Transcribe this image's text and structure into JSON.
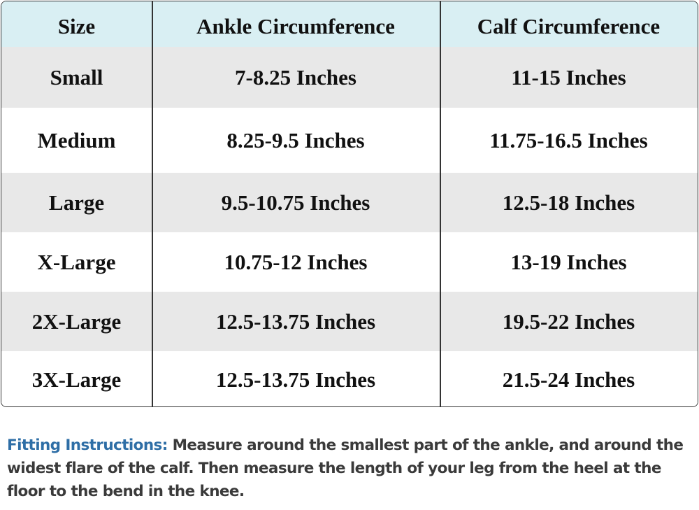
{
  "table": {
    "header": [
      "Size",
      "Ankle Circumference",
      "Calf Circumference"
    ],
    "rows": [
      [
        "Small",
        "7-8.25 Inches",
        "11-15 Inches"
      ],
      [
        "Medium",
        "8.25-9.5 Inches",
        "11.75-16.5 Inches"
      ],
      [
        "Large",
        "9.5-10.75 Inches",
        "12.5-18 Inches"
      ],
      [
        "X-Large",
        "10.75-12 Inches",
        "13-19 Inches"
      ],
      [
        "2X-Large",
        "12.5-13.75 Inches",
        "19.5-22 Inches"
      ],
      [
        "3X-Large",
        "12.5-13.75 Inches",
        "21.5-24 Inches"
      ]
    ]
  },
  "instructions": {
    "label": "Fitting Instructions:",
    "text": "Measure around the smallest part of the ankle, and around the widest flare of the calf. Then measure the length of your leg from the heel at the floor to the bend in the knee."
  }
}
